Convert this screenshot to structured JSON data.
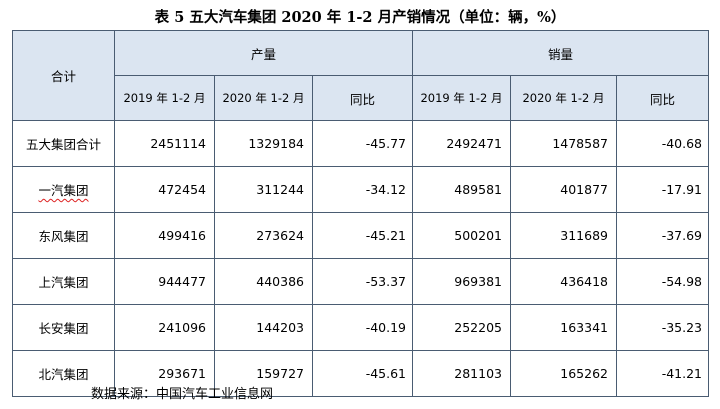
{
  "title": "表 5 五大汽车集团 2020 年 1-2 月产销情况（单位：辆，%）",
  "table": {
    "corner_label": "合计",
    "group_production": "产量",
    "group_sales": "销量",
    "sub_2019": "2019 年 1-2 月",
    "sub_2020": "2020 年 1-2 月",
    "sub_yoy": "同比",
    "rows": [
      {
        "name": "五大集团合计",
        "prod_2019": "2451114",
        "prod_2020": "1329184",
        "prod_yoy": "-45.77",
        "sales_2019": "2492471",
        "sales_2020": "1478587",
        "sales_yoy": "-40.68"
      },
      {
        "name": "一汽集团",
        "prod_2019": "472454",
        "prod_2020": "311244",
        "prod_yoy": "-34.12",
        "sales_2019": "489581",
        "sales_2020": "401877",
        "sales_yoy": "-17.91"
      },
      {
        "name": "东风集团",
        "prod_2019": "499416",
        "prod_2020": "273624",
        "prod_yoy": "-45.21",
        "sales_2019": "500201",
        "sales_2020": "311689",
        "sales_yoy": "-37.69"
      },
      {
        "name": "上汽集团",
        "prod_2019": "944477",
        "prod_2020": "440386",
        "prod_yoy": "-53.37",
        "sales_2019": "969381",
        "sales_2020": "436418",
        "sales_yoy": "-54.98"
      },
      {
        "name": "长安集团",
        "prod_2019": "241096",
        "prod_2020": "144203",
        "prod_yoy": "-40.19",
        "sales_2019": "252205",
        "sales_2020": "163341",
        "sales_yoy": "-35.23"
      },
      {
        "name": "北汽集团",
        "prod_2019": "293671",
        "prod_2020": "159727",
        "prod_yoy": "-45.61",
        "sales_2019": "281103",
        "sales_2020": "165262",
        "sales_yoy": "-41.21"
      }
    ]
  },
  "source": "数据来源：中国汽车工业信息网"
}
